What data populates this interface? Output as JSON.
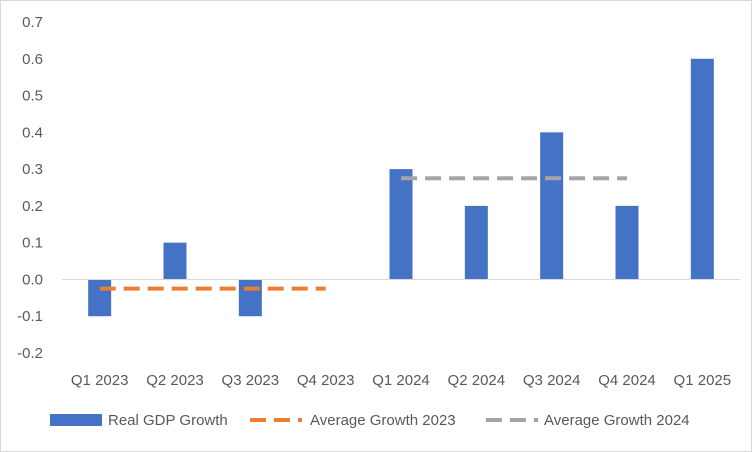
{
  "chart_data": {
    "type": "bar",
    "categories": [
      "Q1 2023",
      "Q2 2023",
      "Q3 2023",
      "Q4 2023",
      "Q1 2024",
      "Q2 2024",
      "Q3 2024",
      "Q4 2024",
      "Q1 2025"
    ],
    "series": [
      {
        "name": "Real GDP Growth",
        "kind": "bar",
        "color": "#4472C4",
        "values": [
          -0.1,
          0.1,
          -0.1,
          null,
          0.3,
          0.2,
          0.4,
          0.2,
          0.6
        ]
      },
      {
        "name": "Average Growth 2023",
        "kind": "dashed-line",
        "color": "#ED7D31",
        "values": [
          -0.025,
          -0.025,
          -0.025,
          -0.025,
          null,
          null,
          null,
          null,
          null
        ]
      },
      {
        "name": "Average Growth 2024",
        "kind": "dashed-line",
        "color": "#A5A5A5",
        "values": [
          null,
          null,
          null,
          null,
          0.275,
          0.275,
          0.275,
          0.275,
          null
        ]
      }
    ],
    "yticks": [
      "0.7",
      "0.6",
      "0.5",
      "0.4",
      "0.3",
      "0.2",
      "0.1",
      "0.0",
      "-0.1",
      "-0.2"
    ],
    "ylim": [
      -0.2,
      0.7
    ],
    "grid": false,
    "legend_position": "bottom",
    "title": "",
    "xlabel": "",
    "ylabel": ""
  }
}
